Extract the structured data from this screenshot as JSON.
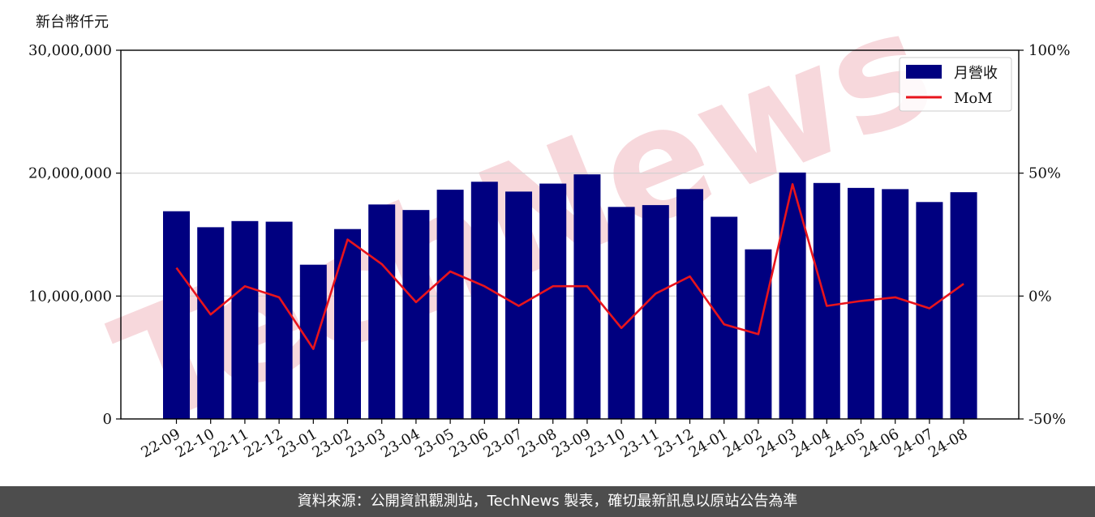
{
  "colors": {
    "bar": "#000080",
    "line": "#e8141c",
    "grid": "#d0d0d0",
    "axis": "#000000",
    "footer_bg": "#4d4d4d",
    "footer_text": "#ffffff",
    "watermark": "#f7d8dc"
  },
  "watermark": {
    "text": "TechNews"
  },
  "chart_data": {
    "type": "bar",
    "y_unit_label": "新台幣仟元",
    "categories": [
      "22-09",
      "22-10",
      "22-11",
      "22-12",
      "23-01",
      "23-02",
      "23-03",
      "23-04",
      "23-05",
      "23-06",
      "23-07",
      "23-08",
      "23-09",
      "23-10",
      "23-11",
      "23-12",
      "24-01",
      "24-02",
      "24-03",
      "24-04",
      "24-05",
      "24-06",
      "24-07",
      "24-08"
    ],
    "series": [
      {
        "name": "月營收",
        "type": "bar",
        "axis": "left",
        "values": [
          16900000,
          15600000,
          16100000,
          16050000,
          12550000,
          15450000,
          17450000,
          17000000,
          18650000,
          19300000,
          18500000,
          19150000,
          19900000,
          17250000,
          17400000,
          18700000,
          16450000,
          13800000,
          20050000,
          19200000,
          18800000,
          18700000,
          17650000,
          18450000
        ]
      },
      {
        "name": "MoM",
        "type": "line",
        "axis": "right",
        "values": [
          11.5,
          -7.5,
          4.0,
          -0.5,
          -21.5,
          23.0,
          13.0,
          -2.5,
          10.0,
          4.0,
          -4.0,
          4.0,
          4.0,
          -13.0,
          1.0,
          8.0,
          -11.5,
          -15.5,
          45.5,
          -4.0,
          -2.0,
          -0.5,
          -5.0,
          5.0
        ]
      }
    ],
    "ylim": [
      0,
      30000000
    ],
    "yticks": [
      0,
      10000000,
      20000000,
      30000000
    ],
    "ytick_labels": [
      "0",
      "10,000,000",
      "20,000,000",
      "30,000,000"
    ],
    "y2lim": [
      -50,
      100
    ],
    "y2ticks": [
      -50,
      0,
      50,
      100
    ],
    "y2tick_labels": [
      "-50%",
      "0%",
      "50%",
      "100%"
    ],
    "grid": "horizontal",
    "legend": {
      "position": "top-right",
      "entries": [
        "月營收",
        "MoM"
      ]
    }
  },
  "footer": {
    "text": "資料來源：公開資訊觀測站，TechNews 製表，確切最新訊息以原站公告為準"
  }
}
